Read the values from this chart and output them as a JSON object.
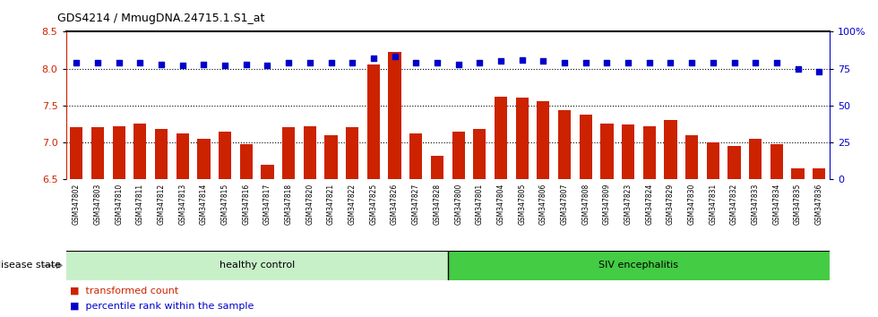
{
  "title": "GDS4214 / MmugDNA.24715.1.S1_at",
  "samples": [
    "GSM347802",
    "GSM347803",
    "GSM347810",
    "GSM347811",
    "GSM347812",
    "GSM347813",
    "GSM347814",
    "GSM347815",
    "GSM347816",
    "GSM347817",
    "GSM347818",
    "GSM347820",
    "GSM347821",
    "GSM347822",
    "GSM347825",
    "GSM347826",
    "GSM347827",
    "GSM347828",
    "GSM347800",
    "GSM347801",
    "GSM347804",
    "GSM347805",
    "GSM347806",
    "GSM347807",
    "GSM347808",
    "GSM347809",
    "GSM347823",
    "GSM347824",
    "GSM347829",
    "GSM347830",
    "GSM347831",
    "GSM347832",
    "GSM347833",
    "GSM347834",
    "GSM347835",
    "GSM347836"
  ],
  "bar_values": [
    7.2,
    7.2,
    7.22,
    7.25,
    7.18,
    7.12,
    7.05,
    7.15,
    6.97,
    6.7,
    7.2,
    7.22,
    7.1,
    7.2,
    8.05,
    8.23,
    7.12,
    6.82,
    7.15,
    7.18,
    7.62,
    7.6,
    7.56,
    7.43,
    7.38,
    7.25,
    7.24,
    7.22,
    7.3,
    7.1,
    7.0,
    6.95,
    7.05,
    6.97,
    6.65,
    6.65
  ],
  "percentile_values": [
    79,
    79,
    79,
    79,
    78,
    77,
    78,
    77,
    78,
    77,
    79,
    79,
    79,
    79,
    82,
    83,
    79,
    79,
    78,
    79,
    80,
    81,
    80,
    79,
    79,
    79,
    79,
    79,
    79,
    79,
    79,
    79,
    79,
    79,
    75,
    73
  ],
  "healthy_count": 18,
  "sick_count": 18,
  "ylim_left": [
    6.5,
    8.5
  ],
  "ylim_right": [
    0,
    100
  ],
  "yticks_left": [
    6.5,
    7.0,
    7.5,
    8.0,
    8.5
  ],
  "yticks_right": [
    0,
    25,
    50,
    75,
    100
  ],
  "ytick_right_labels": [
    "0",
    "25",
    "50",
    "75",
    "100%"
  ],
  "grid_lines": [
    7.0,
    7.5,
    8.0
  ],
  "bar_color": "#cc2200",
  "percentile_color": "#0000cc",
  "healthy_color": "#c8f0c8",
  "sick_color": "#44cc44",
  "healthy_label": "healthy control",
  "sick_label": "SIV encephalitis",
  "disease_state_label": "disease state",
  "legend_bar_label": "transformed count",
  "legend_pct_label": "percentile rank within the sample",
  "bar_width": 0.6,
  "tick_bg_color": "#d8d8d8",
  "top_spine_color": "#000000"
}
